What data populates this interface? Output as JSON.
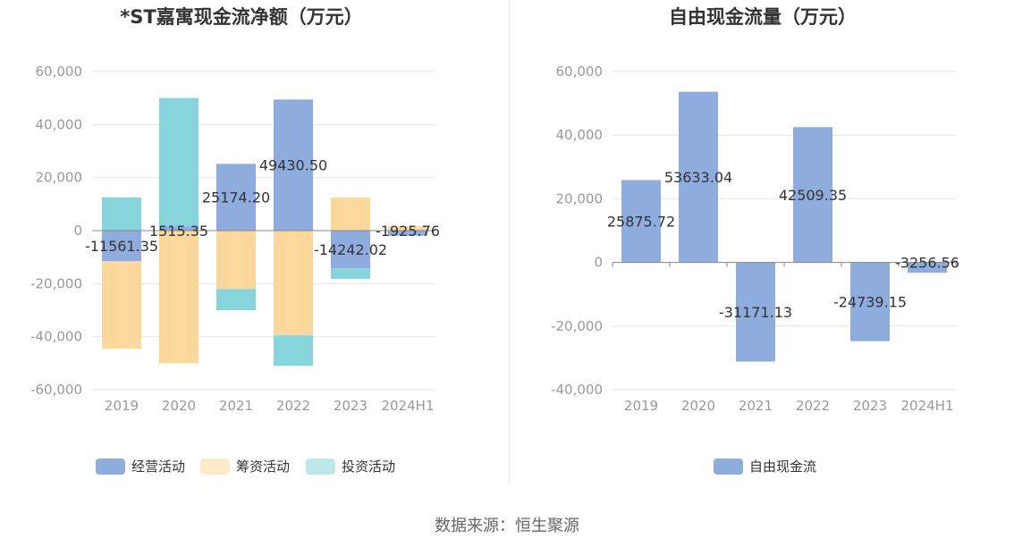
{
  "colors": {
    "operating": "#8eadde",
    "financing": "#fdd89c",
    "investing": "#86d5da",
    "free_cash_flow": "#8eadde",
    "axis_text": "#999999",
    "grid": "#e6e6e6",
    "title": "#333333",
    "label": "#333333",
    "divider": "#e8e8e8"
  },
  "source_text": "数据来源：恒生聚源",
  "chart_data": [
    {
      "type": "bar",
      "stacked": true,
      "title": "*ST嘉寓现金流净额（万元）",
      "categories": [
        "2019",
        "2020",
        "2021",
        "2022",
        "2023",
        "2024H1"
      ],
      "ylim": [
        -60000,
        60000
      ],
      "yticks": [
        60000,
        40000,
        20000,
        0,
        -20000,
        -40000,
        -60000
      ],
      "ytick_labels": [
        "60,000",
        "40,000",
        "20,000",
        "0",
        "-20,000",
        "-40,000",
        "-60,000"
      ],
      "grid": true,
      "legend_position": "bottom",
      "series": [
        {
          "name": "经营活动",
          "color_key": "operating",
          "values": [
            -11561.35,
            1515.35,
            25174.2,
            49430.5,
            -14242.02,
            -1925.76
          ]
        },
        {
          "name": "筹资活动",
          "color_key": "financing",
          "values": [
            -33000,
            -50000,
            -22000,
            -39500,
            12500,
            1600
          ]
        },
        {
          "name": "投资活动",
          "color_key": "investing",
          "values": [
            12500,
            48500,
            -8000,
            -11500,
            -4000,
            0
          ]
        }
      ],
      "data_labels": [
        "-11561.35",
        "1515.35",
        "25174.20",
        "49430.50",
        "-14242.02",
        "-1925.76"
      ]
    },
    {
      "type": "bar",
      "stacked": false,
      "title": "自由现金流量（万元）",
      "categories": [
        "2019",
        "2020",
        "2021",
        "2022",
        "2023",
        "2024H1"
      ],
      "ylim": [
        -40000,
        60000
      ],
      "yticks": [
        60000,
        40000,
        20000,
        0,
        -20000,
        -40000
      ],
      "ytick_labels": [
        "60,000",
        "40,000",
        "20,000",
        "0",
        "-20,000",
        "-40,000"
      ],
      "grid": true,
      "legend_position": "bottom",
      "series": [
        {
          "name": "自由现金流",
          "color_key": "free_cash_flow",
          "values": [
            25875.72,
            53633.04,
            -31171.13,
            42509.35,
            -24739.15,
            -3256.56
          ]
        }
      ],
      "data_labels": [
        "25875.72",
        "53633.04",
        "-31171.13",
        "42509.35",
        "-24739.15",
        "-3256.56"
      ]
    }
  ]
}
